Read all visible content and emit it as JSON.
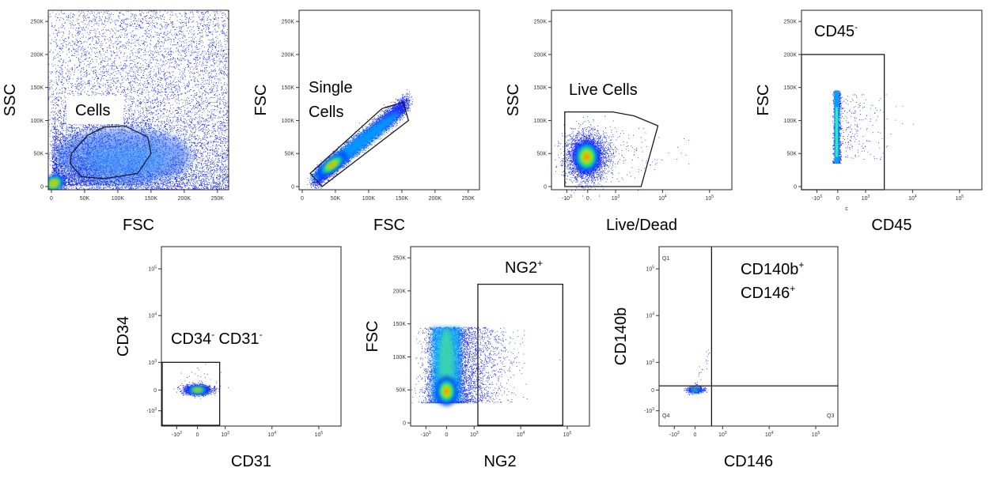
{
  "chart_data": [
    {
      "type": "scatter",
      "id": "cells",
      "xlabel": "FSC",
      "ylabel": "SSC",
      "x_ticks": [
        "0",
        "50K",
        "100K",
        "150K",
        "200K",
        "250K"
      ],
      "y_ticks": [
        "0",
        "50K",
        "100K",
        "150K",
        "200K",
        "250K"
      ],
      "xlim": [
        0,
        262144
      ],
      "ylim": [
        0,
        262144
      ],
      "gate": {
        "label": "Cells",
        "polygon": [
          [
            30000,
            50000
          ],
          [
            55000,
            78000
          ],
          [
            80000,
            90000
          ],
          [
            110000,
            92000
          ],
          [
            145000,
            75000
          ],
          [
            150000,
            50000
          ],
          [
            130000,
            20000
          ],
          [
            80000,
            12000
          ],
          [
            45000,
            15000
          ],
          [
            28000,
            35000
          ]
        ]
      }
    },
    {
      "type": "scatter",
      "id": "single-cells",
      "xlabel": "FSC",
      "ylabel": "FSC",
      "x_ticks": [
        "0",
        "50K",
        "100K",
        "150K",
        "200K",
        "250K"
      ],
      "y_ticks": [
        "0",
        "50K",
        "100K",
        "150K",
        "200K",
        "250K"
      ],
      "xlim": [
        0,
        262144
      ],
      "ylim": [
        0,
        262144
      ],
      "gate": {
        "label": [
          "Single",
          "Cells"
        ],
        "polygon": [
          [
            12000,
            20000
          ],
          [
            30000,
            0
          ],
          [
            160000,
            100000
          ],
          [
            152000,
            128000
          ],
          [
            120000,
            118000
          ]
        ]
      }
    },
    {
      "type": "scatter",
      "id": "live-cells",
      "xlabel": "Live/Dead",
      "ylabel": "SSC",
      "x_ticks": [
        "-10^3",
        "0",
        "10^3",
        "10^4",
        "10^5"
      ],
      "y_ticks": [
        "0",
        "50K",
        "100K",
        "150K",
        "200K",
        "250K"
      ],
      "ylim": [
        0,
        262144
      ],
      "gate": {
        "label": "Live Cells",
        "polygon": [
          [
            -1100,
            113000
          ],
          [
            900,
            113000
          ],
          [
            2500,
            107000
          ],
          [
            8000,
            92000
          ],
          [
            3500,
            0
          ],
          [
            -1100,
            0
          ]
        ]
      }
    },
    {
      "type": "scatter",
      "id": "cd45-neg",
      "xlabel": "CD45",
      "ylabel": "FSC",
      "x_ticks": [
        "-10^3",
        "0",
        "10^3",
        "10^4",
        "10^5"
      ],
      "y_ticks": [
        "0",
        "50K",
        "100K",
        "150K",
        "200K",
        "250K"
      ],
      "ylim": [
        0,
        262144
      ],
      "gate": {
        "label": "CD45",
        "label_sup": "-",
        "rect": {
          "x_min": -1600,
          "x_max": 2500,
          "y_min": 0,
          "y_max": 200000
        }
      },
      "annotation": "c"
    },
    {
      "type": "scatter",
      "id": "cd34-cd31",
      "xlabel": "CD31",
      "ylabel": "CD34",
      "x_ticks": [
        "-10^3",
        "0",
        "10^3",
        "10^4",
        "10^5"
      ],
      "y_ticks": [
        "-10^3",
        "0",
        "10^3",
        "10^4",
        "10^5"
      ],
      "gate": {
        "label_parts": [
          [
            "CD34",
            "-"
          ],
          [
            "CD31",
            "-"
          ]
        ],
        "rect": {
          "x_min": -1600,
          "x_max": 800,
          "y_min": -1600,
          "y_max": 1000
        }
      }
    },
    {
      "type": "scatter",
      "id": "ng2-pos",
      "xlabel": "NG2",
      "ylabel": "FSC",
      "x_ticks": [
        "-10^3",
        "0",
        "10^3",
        "10^4",
        "10^5"
      ],
      "y_ticks": [
        "0",
        "50K",
        "100K",
        "150K",
        "200K",
        "250K"
      ],
      "ylim": [
        0,
        262144
      ],
      "gate": {
        "label": "NG2",
        "label_sup": "+",
        "rect": {
          "x_min": 1200,
          "x_max": 80000,
          "y_min": 0,
          "y_max": 210000
        }
      }
    },
    {
      "type": "scatter",
      "id": "cd140b-cd146",
      "xlabel": "CD146",
      "ylabel": "CD140b",
      "x_ticks": [
        "-10^3",
        "0",
        "10^3",
        "10^4",
        "10^5"
      ],
      "y_ticks": [
        "-10^3",
        "0",
        "10^3",
        "10^4",
        "10^5"
      ],
      "quadrant": {
        "x": 600,
        "y": 150
      },
      "quadrant_labels": [
        "Q1",
        "Q3",
        "Q4"
      ],
      "gate": {
        "label_lines": [
          [
            "CD140b",
            "+"
          ],
          [
            "CD146",
            "+"
          ]
        ]
      }
    }
  ]
}
